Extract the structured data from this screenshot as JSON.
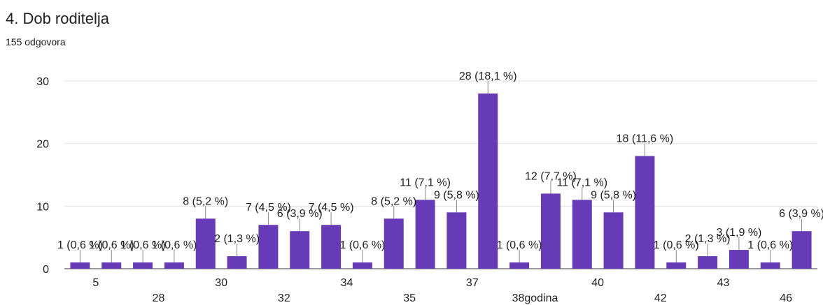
{
  "header": {
    "title": "4. Dob roditelja",
    "subtitle": "155 odgovora"
  },
  "chart_data": {
    "type": "bar",
    "title": "4. Dob roditelja",
    "subtitle": "155 odgovora",
    "xlabel": "",
    "ylabel": "",
    "ylim": [
      0,
      30
    ],
    "yticks": [
      0,
      10,
      20,
      30
    ],
    "grid": true,
    "legend": "none",
    "bar_color": "#673ab7",
    "x_tick_labels": [
      "5",
      "28",
      "30",
      "32",
      "34",
      "35",
      "37",
      "38godina",
      "40",
      "42",
      "43",
      "46"
    ],
    "values": [
      1,
      1,
      1,
      1,
      8,
      2,
      7,
      6,
      7,
      1,
      8,
      11,
      9,
      28,
      1,
      12,
      11,
      9,
      18,
      1,
      2,
      3,
      1,
      6
    ],
    "data_labels": [
      "1 (0,6 %)",
      "1 (0,6 %)",
      "1 (0,6 %)",
      "1 (0,6 %)",
      "8 (5,2 %)",
      "2 (1,3 %)",
      "7 (4,5 %)",
      "6 (3,9 %)",
      "7 (4,5 %)",
      "1 (0,6 %)",
      "8 (5,2 %)",
      "11 (7,1 %)",
      "9 (5,8 %)",
      "28 (18,1 %)",
      "1 (0,6 %)",
      "12 (7,7 %)",
      "11 (7,1 %)",
      "9 (5,8 %)",
      "18 (11,6 %)",
      "1 (0,6 %)",
      "2 (1,3 %)",
      "3 (1,9 %)",
      "1 (0,6 %)",
      "6 (3,9 %)"
    ]
  }
}
